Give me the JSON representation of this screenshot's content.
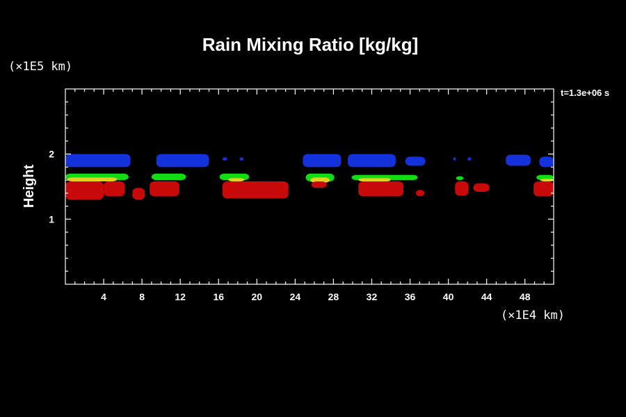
{
  "chart_data": {
    "type": "heatmap",
    "title": "Rain Mixing Ratio [kg/kg]",
    "xlabel": "",
    "ylabel": "Height",
    "x_unit_label": "(×1E4 km)",
    "y_unit_label": "(×1E5 km)",
    "time_label": "t=1.3e+06 s",
    "xlim": [
      0,
      51
    ],
    "ylim": [
      0,
      3
    ],
    "x_ticks": [
      4,
      8,
      12,
      16,
      20,
      24,
      28,
      32,
      36,
      40,
      44,
      48
    ],
    "x_tick_labels": [
      "4",
      "8",
      "12",
      "16",
      "20",
      "24",
      "28",
      "32",
      "36",
      "40",
      "44",
      "48"
    ],
    "y_ticks": [
      1,
      2
    ],
    "y_tick_labels": [
      "1",
      "2"
    ],
    "colors": {
      "background": "#000000",
      "foreground": "#ffffff",
      "level_blue": "#1432dc",
      "level_green": "#14dc14",
      "level_yellow": "#e6d21e",
      "level_orange": "#f08c14",
      "level_red": "#c80a0a"
    },
    "regions": [
      {
        "level": "blue",
        "x": [
          0.0,
          6.8
        ],
        "y": [
          1.8,
          2.0
        ]
      },
      {
        "level": "blue",
        "x": [
          9.5,
          15.0
        ],
        "y": [
          1.8,
          2.0
        ]
      },
      {
        "level": "blue",
        "x": [
          16.4,
          16.9
        ],
        "y": [
          1.9,
          1.95
        ]
      },
      {
        "level": "blue",
        "x": [
          18.2,
          18.6
        ],
        "y": [
          1.9,
          1.95
        ]
      },
      {
        "level": "blue",
        "x": [
          24.8,
          28.8
        ],
        "y": [
          1.8,
          2.0
        ]
      },
      {
        "level": "blue",
        "x": [
          29.5,
          34.5
        ],
        "y": [
          1.8,
          2.0
        ]
      },
      {
        "level": "blue",
        "x": [
          35.5,
          37.6
        ],
        "y": [
          1.82,
          1.96
        ]
      },
      {
        "level": "blue",
        "x": [
          40.5,
          40.8
        ],
        "y": [
          1.9,
          1.95
        ]
      },
      {
        "level": "blue",
        "x": [
          42.0,
          42.4
        ],
        "y": [
          1.9,
          1.95
        ]
      },
      {
        "level": "blue",
        "x": [
          46.0,
          48.6
        ],
        "y": [
          1.82,
          1.99
        ]
      },
      {
        "level": "blue",
        "x": [
          49.5,
          51.0
        ],
        "y": [
          1.8,
          1.96
        ]
      },
      {
        "level": "green",
        "x": [
          0.0,
          6.6
        ],
        "y": [
          1.6,
          1.7
        ]
      },
      {
        "level": "green",
        "x": [
          9.0,
          12.6
        ],
        "y": [
          1.6,
          1.7
        ]
      },
      {
        "level": "green",
        "x": [
          16.1,
          19.2
        ],
        "y": [
          1.6,
          1.7
        ]
      },
      {
        "level": "green",
        "x": [
          25.1,
          28.1
        ],
        "y": [
          1.58,
          1.7
        ]
      },
      {
        "level": "green",
        "x": [
          29.9,
          36.8
        ],
        "y": [
          1.6,
          1.68
        ]
      },
      {
        "level": "green",
        "x": [
          40.8,
          41.6
        ],
        "y": [
          1.6,
          1.66
        ]
      },
      {
        "level": "green",
        "x": [
          49.2,
          51.0
        ],
        "y": [
          1.6,
          1.68
        ]
      },
      {
        "level": "yellow",
        "x": [
          0.2,
          5.4
        ],
        "y": [
          1.58,
          1.64
        ]
      },
      {
        "level": "yellow",
        "x": [
          17.0,
          18.7
        ],
        "y": [
          1.58,
          1.63
        ]
      },
      {
        "level": "yellow",
        "x": [
          25.6,
          27.6
        ],
        "y": [
          1.56,
          1.64
        ]
      },
      {
        "level": "yellow",
        "x": [
          30.6,
          34.0
        ],
        "y": [
          1.58,
          1.63
        ]
      },
      {
        "level": "yellow",
        "x": [
          49.6,
          51.0
        ],
        "y": [
          1.58,
          1.62
        ]
      },
      {
        "level": "red",
        "x": [
          0.0,
          4.0
        ],
        "y": [
          1.3,
          1.58
        ]
      },
      {
        "level": "red",
        "x": [
          4.0,
          6.2
        ],
        "y": [
          1.35,
          1.58
        ]
      },
      {
        "level": "red",
        "x": [
          7.0,
          8.3
        ],
        "y": [
          1.3,
          1.48
        ]
      },
      {
        "level": "red",
        "x": [
          8.8,
          11.9
        ],
        "y": [
          1.35,
          1.58
        ]
      },
      {
        "level": "red",
        "x": [
          16.4,
          23.3
        ],
        "y": [
          1.32,
          1.58
        ]
      },
      {
        "level": "red",
        "x": [
          25.7,
          27.3
        ],
        "y": [
          1.48,
          1.58
        ]
      },
      {
        "level": "red",
        "x": [
          30.6,
          35.3
        ],
        "y": [
          1.35,
          1.58
        ]
      },
      {
        "level": "red",
        "x": [
          36.6,
          37.5
        ],
        "y": [
          1.35,
          1.45
        ]
      },
      {
        "level": "red",
        "x": [
          40.7,
          42.1
        ],
        "y": [
          1.36,
          1.58
        ]
      },
      {
        "level": "red",
        "x": [
          42.6,
          44.3
        ],
        "y": [
          1.42,
          1.55
        ]
      },
      {
        "level": "red",
        "x": [
          48.9,
          51.0
        ],
        "y": [
          1.35,
          1.58
        ]
      }
    ]
  }
}
